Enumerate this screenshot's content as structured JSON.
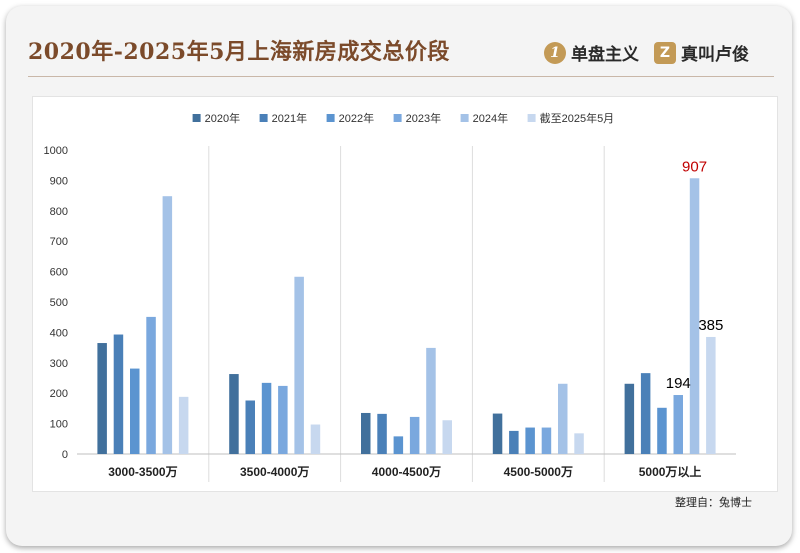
{
  "header": {
    "title": "2020年-2025年5月上海新房成交总价段",
    "brand_left": "单盘主义",
    "brand_right": "真叫卢俊"
  },
  "footer": {
    "source": "整理自：兔博士"
  },
  "chart_data": {
    "type": "bar",
    "title": "",
    "xlabel": "",
    "ylabel": "",
    "ylim": [
      0,
      1000
    ],
    "yticks": [
      0,
      100,
      200,
      300,
      400,
      500,
      600,
      700,
      800,
      900,
      1000
    ],
    "categories": [
      "3000-3500万",
      "3500-4000万",
      "4000-4500万",
      "4500-5000万",
      "5000万以上"
    ],
    "series": [
      {
        "name": "2020年",
        "color": "#41709c",
        "values": [
          365,
          263,
          135,
          133,
          231
        ]
      },
      {
        "name": "2021年",
        "color": "#4a80b8",
        "values": [
          393,
          176,
          132,
          76,
          266
        ]
      },
      {
        "name": "2022年",
        "color": "#5b94d0",
        "values": [
          281,
          234,
          58,
          87,
          152
        ]
      },
      {
        "name": "2023年",
        "color": "#7aa8de",
        "values": [
          451,
          224,
          122,
          87,
          194
        ]
      },
      {
        "name": "2024年",
        "color": "#a4c2e7",
        "values": [
          848,
          583,
          349,
          231,
          907
        ]
      },
      {
        "name": "截至2025年5月",
        "color": "#c7d8ef",
        "values": [
          188,
          97,
          111,
          68,
          385
        ]
      }
    ],
    "data_labels": [
      {
        "series": 3,
        "category": 4,
        "text": "194",
        "color": "#000000"
      },
      {
        "series": 4,
        "category": 4,
        "text": "907",
        "color": "#c00000"
      },
      {
        "series": 5,
        "category": 4,
        "text": "385",
        "color": "#000000"
      }
    ],
    "legend": "top-center",
    "grid": false,
    "category_separators": true
  }
}
